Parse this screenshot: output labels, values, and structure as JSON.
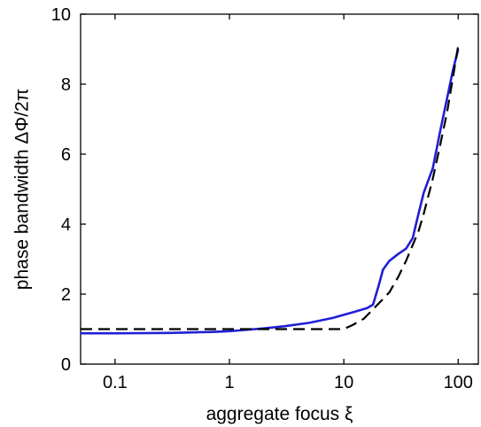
{
  "chart_data": {
    "type": "line",
    "title": "",
    "xlabel": "aggregate focus ξ",
    "ylabel": "phase bandwidth ΔΦ/2π",
    "xscale": "log",
    "xlim": [
      0.05,
      150
    ],
    "ylim": [
      0,
      10
    ],
    "xticks": [
      0.1,
      1,
      10,
      100
    ],
    "xtick_labels": [
      "0.1",
      "1",
      "10",
      "100"
    ],
    "yticks": [
      0,
      2,
      4,
      6,
      8,
      10
    ],
    "ytick_labels": [
      "0",
      "2",
      "4",
      "6",
      "8",
      "10"
    ],
    "grid": false,
    "legend": "none",
    "series": [
      {
        "style": "solid",
        "color": "#1f1fd6",
        "points": [
          [
            0.05,
            0.88
          ],
          [
            0.1,
            0.88
          ],
          [
            0.3,
            0.89
          ],
          [
            0.7,
            0.92
          ],
          [
            1.0,
            0.94
          ],
          [
            2.0,
            1.02
          ],
          [
            3.0,
            1.08
          ],
          [
            5.0,
            1.18
          ],
          [
            8.0,
            1.32
          ],
          [
            12.0,
            1.48
          ],
          [
            16.0,
            1.6
          ],
          [
            18.0,
            1.7
          ],
          [
            20.0,
            2.2
          ],
          [
            22.0,
            2.7
          ],
          [
            25.0,
            2.95
          ],
          [
            30.0,
            3.15
          ],
          [
            35.0,
            3.3
          ],
          [
            40.0,
            3.6
          ],
          [
            45.0,
            4.3
          ],
          [
            50.0,
            4.9
          ],
          [
            60.0,
            5.6
          ],
          [
            70.0,
            6.7
          ],
          [
            80.0,
            7.6
          ],
          [
            90.0,
            8.4
          ],
          [
            100.0,
            9.0
          ]
        ]
      },
      {
        "style": "dashed",
        "color": "#000000",
        "points": [
          [
            0.05,
            1.0
          ],
          [
            0.1,
            1.0
          ],
          [
            1.0,
            1.0
          ],
          [
            5.0,
            1.0
          ],
          [
            10.0,
            1.0
          ],
          [
            12.0,
            1.12
          ],
          [
            15.0,
            1.3
          ],
          [
            20.0,
            1.72
          ],
          [
            25.0,
            2.05
          ],
          [
            30.0,
            2.5
          ],
          [
            35.0,
            2.95
          ],
          [
            40.0,
            3.4
          ],
          [
            45.0,
            3.8
          ],
          [
            50.0,
            4.3
          ],
          [
            60.0,
            5.3
          ],
          [
            70.0,
            6.3
          ],
          [
            80.0,
            7.2
          ],
          [
            90.0,
            8.2
          ],
          [
            100.0,
            9.1
          ]
        ]
      }
    ]
  }
}
